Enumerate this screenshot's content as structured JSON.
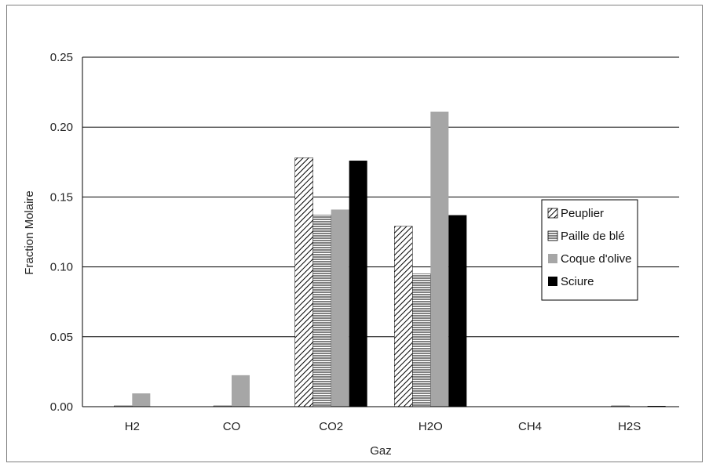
{
  "chart_data": {
    "type": "bar",
    "title": "",
    "xlabel": "Gaz",
    "ylabel": "Fraction Molaire",
    "categories": [
      "H2",
      "CO",
      "CO2",
      "H2O",
      "CH4",
      "H2S"
    ],
    "ylim": [
      0,
      0.25
    ],
    "yticks": [
      "0.00",
      "0.05",
      "0.10",
      "0.15",
      "0.20",
      "0.25"
    ],
    "grid": "horizontal",
    "legend_position": "right",
    "series": [
      {
        "name": "Peuplier",
        "pattern": "diagonal-hatch",
        "color": "#000000",
        "values": [
          0.0,
          0.0,
          0.178,
          0.129,
          0.0,
          0.0
        ]
      },
      {
        "name": "Paille de blé",
        "pattern": "horizontal-lines",
        "color": "#000000",
        "values": [
          0.0005,
          0.0005,
          0.137,
          0.095,
          0.0,
          0.0005
        ]
      },
      {
        "name": "Coque d'olive",
        "pattern": "solid",
        "color": "#a6a6a6",
        "values": [
          0.0095,
          0.0225,
          0.141,
          0.211,
          0.0,
          0.0
        ]
      },
      {
        "name": "Sciure",
        "pattern": "solid",
        "color": "#000000",
        "values": [
          0.0,
          0.0,
          0.176,
          0.137,
          0.0,
          0.0005
        ]
      }
    ]
  }
}
